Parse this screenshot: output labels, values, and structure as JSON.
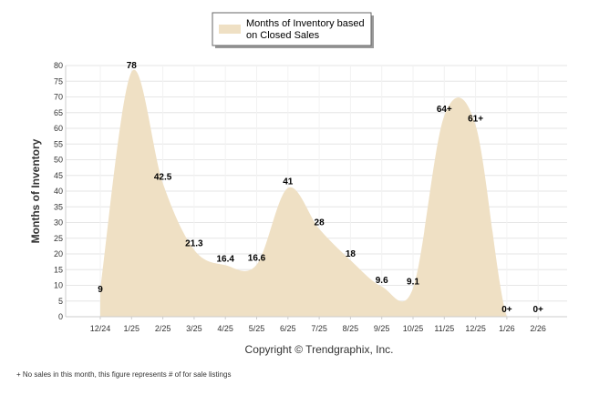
{
  "chart_data": {
    "type": "area",
    "title": "",
    "xlabel": "",
    "ylabel": "Months of Inventory",
    "ylim": [
      0,
      80
    ],
    "yticks": [
      0,
      5,
      10,
      15,
      20,
      25,
      30,
      35,
      40,
      45,
      50,
      55,
      60,
      65,
      70,
      75,
      80
    ],
    "grid": true,
    "legend_position": "top-center",
    "categories": [
      "12/24",
      "1/25",
      "2/25",
      "3/25",
      "4/25",
      "5/25",
      "6/25",
      "7/25",
      "8/25",
      "9/25",
      "10/25",
      "11/25",
      "12/25",
      "1/26",
      "2/26"
    ],
    "series": [
      {
        "name": "Months of Inventory based on Closed Sales",
        "color": "#efe0c4",
        "values": [
          9,
          78,
          42.5,
          21.3,
          16.4,
          16.6,
          41,
          28,
          18,
          9.6,
          9.1,
          64,
          61,
          0,
          0
        ],
        "labels": [
          "9",
          "78",
          "42.5",
          "21.3",
          "16.4",
          "16.6",
          "41",
          "28",
          "18",
          "9.6",
          "9.1",
          "64+",
          "61+",
          "0+",
          "0+"
        ]
      }
    ]
  },
  "legend_text_line1": "Months of Inventory based",
  "legend_text_line2": "on Closed Sales",
  "copyright": "Copyright © Trendgraphix, Inc.",
  "footnote": "+  No sales in this month, this figure represents # of for sale listings"
}
